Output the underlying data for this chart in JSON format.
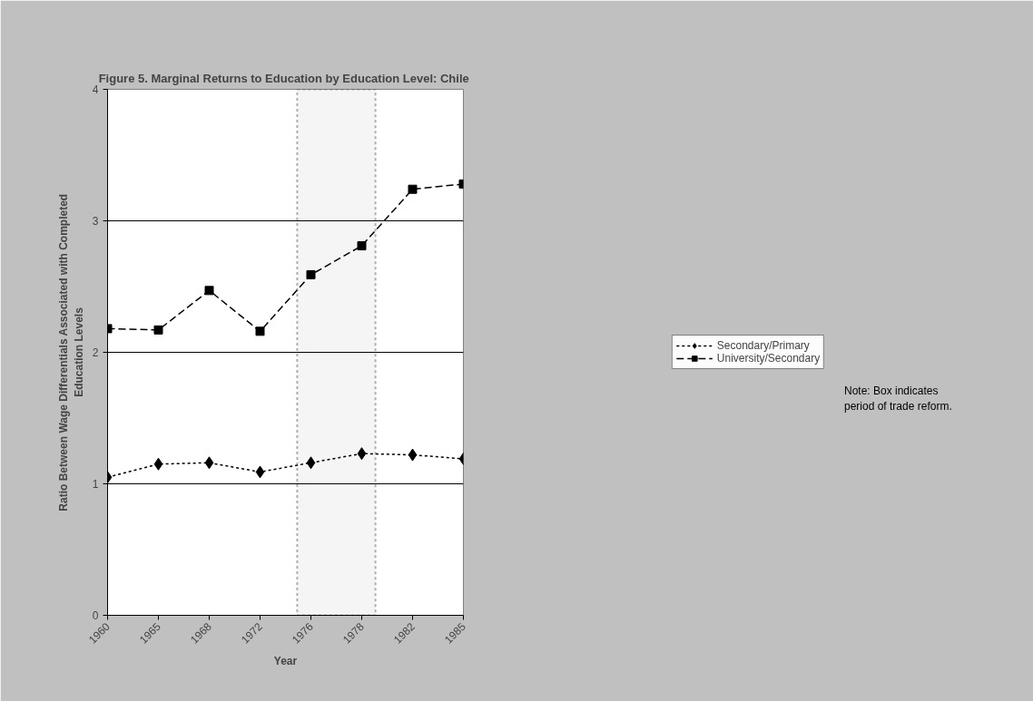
{
  "chart_data": {
    "type": "line",
    "title": "Figure 5.  Marginal Returns to Education by Education Level: Chile",
    "xlabel": "Year",
    "ylabel": "Ratio Between Wage Differentials Associated with Completed Education Levels",
    "categories": [
      "1960",
      "1965",
      "1968",
      "1972",
      "1976",
      "1978",
      "1982",
      "1985"
    ],
    "series": [
      {
        "name": "Secondary/Primary",
        "color": "#000000",
        "marker": "diamond",
        "line_style": "dotted",
        "values": [
          1.05,
          1.15,
          1.16,
          1.09,
          1.16,
          1.23,
          1.22,
          1.19
        ]
      },
      {
        "name": "University/Secondary",
        "color": "#000000",
        "marker": "square",
        "line_style": "dashed",
        "values": [
          2.18,
          2.17,
          2.47,
          2.16,
          2.59,
          2.81,
          3.24,
          3.28
        ]
      }
    ],
    "ylim": [
      0,
      4
    ],
    "yticks": [
      0,
      1,
      2,
      3,
      4
    ],
    "grid": "y",
    "legend": "right",
    "bands": [
      {
        "axis": "x",
        "from": "1976",
        "to": "1978",
        "label": null,
        "color": "#000000"
      }
    ],
    "annotations": [
      "Note: Box indicates period of trade reform."
    ]
  }
}
